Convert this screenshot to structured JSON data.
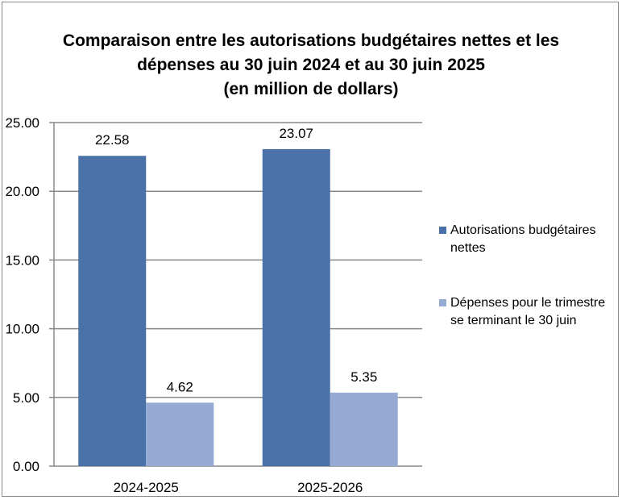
{
  "title": {
    "line1": "Comparaison entre les autorisations budgétaires nettes et les",
    "line2": "dépenses au 30 juin 2024 et au 30 juin 2025",
    "line3": "(en million de dollars)"
  },
  "colors": {
    "series1": "#4a72a8",
    "series2": "#95abd4",
    "grid": "#888888"
  },
  "chart_data": {
    "type": "bar",
    "title": "Comparaison entre les autorisations budgétaires nettes et les dépenses au 30 juin 2024 et au 30 juin 2025 (en million de dollars)",
    "categories": [
      "2024-2025",
      "2025-2026"
    ],
    "series": [
      {
        "name": "Autorisations budgétaires nettes",
        "values": [
          22.58,
          23.07
        ],
        "labels": [
          "22.58",
          "23.07"
        ]
      },
      {
        "name": "Dépenses pour le trimestre se terminant le 30 juin",
        "values": [
          4.62,
          5.35
        ],
        "labels": [
          "4.62",
          "5.35"
        ]
      }
    ],
    "ylim": [
      0,
      25
    ],
    "yticks": [
      "0.00",
      "5.00",
      "10.00",
      "15.00",
      "20.00",
      "25.00"
    ],
    "grid": true,
    "legend": "right"
  },
  "legend": {
    "item1": "Autorisations budgétaires nettes",
    "item2": "Dépenses pour le trimestre se terminant le 30 juin"
  }
}
